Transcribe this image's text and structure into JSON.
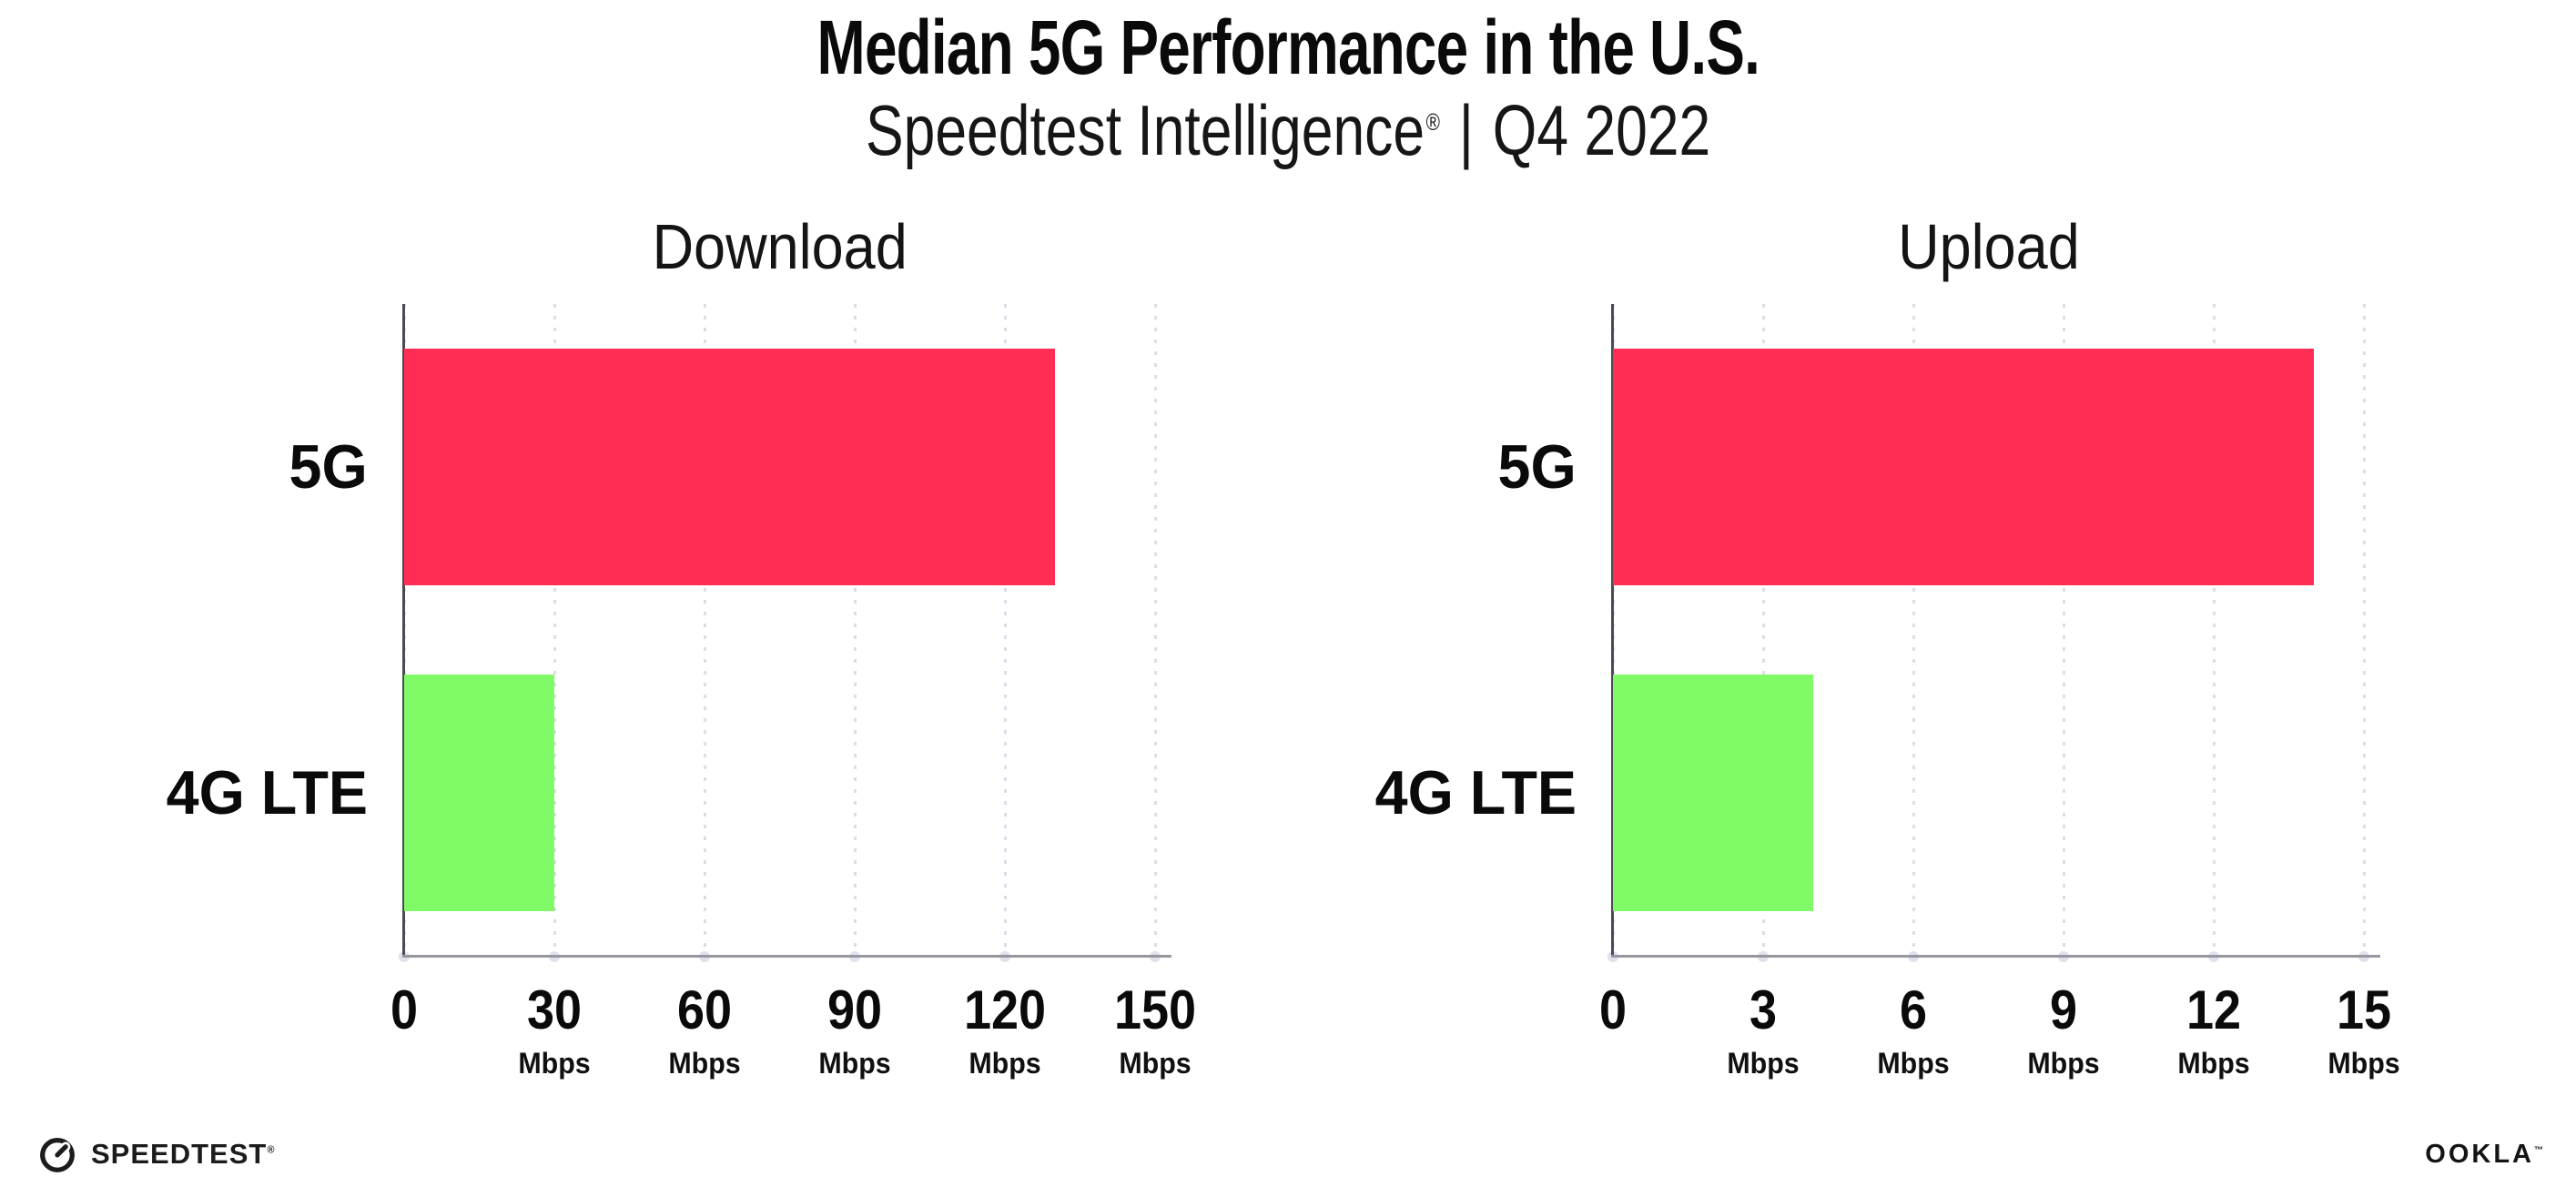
{
  "header": {
    "title": "Median 5G Performance in the U.S.",
    "subtitle": {
      "brand": "Speedtest Intelligence",
      "registered": "®",
      "separator": "|",
      "period": "Q4 2022"
    }
  },
  "chart_data": {
    "type": "bar",
    "orientation": "horizontal",
    "grid": "dotted-vertical",
    "legend": "none",
    "categories": [
      "5G",
      "4G LTE"
    ],
    "series_colors": {
      "5G": "#FF2D54",
      "4G LTE": "#80FA66"
    },
    "charts": [
      {
        "title": "Download",
        "unit": "Mbps",
        "xlim": [
          0,
          150
        ],
        "ticks": [
          0,
          30,
          60,
          90,
          120,
          150
        ],
        "values": [
          130,
          30
        ]
      },
      {
        "title": "Upload",
        "unit": "Mbps",
        "xlim": [
          0,
          15
        ],
        "ticks": [
          0,
          3,
          6,
          9,
          12,
          15
        ],
        "values": [
          14,
          4
        ]
      }
    ]
  },
  "footer": {
    "speedtest_logo": "SPEEDTEST",
    "speedtest_trademark": "®",
    "ookla_logo": "OOKLA",
    "ookla_trademark": "™"
  },
  "colors": {
    "bar_5g": "#FF2D54",
    "bar_4g_lte": "#80FA66",
    "gridline": "#dcdde9",
    "axis_line": "#97979f",
    "axis_spine": "#4a4a52",
    "text": "#0a0a0a"
  }
}
